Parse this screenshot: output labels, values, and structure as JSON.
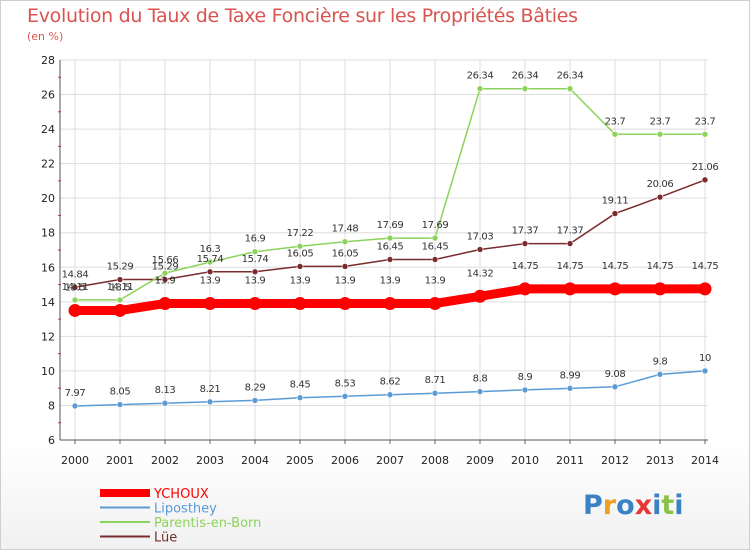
{
  "chart_data": {
    "type": "line",
    "title": "Evolution du Taux de Taxe Foncière sur les Propriétés Bâties",
    "subtitle": "(en %)",
    "xlabel": "",
    "ylabel": "",
    "x": [
      "2000",
      "2001",
      "2002",
      "2003",
      "2004",
      "2005",
      "2006",
      "2007",
      "2008",
      "2009",
      "2010",
      "2011",
      "2012",
      "2013",
      "2014"
    ],
    "ylim": [
      6,
      28
    ],
    "yticks": [
      6,
      8,
      10,
      12,
      14,
      16,
      18,
      20,
      22,
      24,
      26,
      28
    ],
    "grid": true,
    "legend_position": "bottom-left",
    "series": [
      {
        "name": "YCHOUX",
        "color": "#ff0000",
        "emphasis": true,
        "values": [
          13.5,
          13.5,
          13.9,
          13.9,
          13.9,
          13.9,
          13.9,
          13.9,
          13.9,
          14.32,
          14.75,
          14.75,
          14.75,
          14.75,
          14.75
        ],
        "labels": [
          "13.5",
          "13.5",
          "13.9",
          "13.9",
          "13.9",
          "13.9",
          "13.9",
          "13.9",
          "13.9",
          "14.32",
          "14.75",
          "14.75",
          "14.75",
          "14.75",
          "14.75"
        ]
      },
      {
        "name": "Liposthey",
        "color": "#5b9bd5",
        "values": [
          7.97,
          8.05,
          8.13,
          8.21,
          8.29,
          8.45,
          8.53,
          8.62,
          8.71,
          8.8,
          8.9,
          8.99,
          9.08,
          9.8,
          10
        ],
        "labels": [
          "7.97",
          "8.05",
          "8.13",
          "8.21",
          "8.29",
          "8.45",
          "8.53",
          "8.62",
          "8.71",
          "8.8",
          "8.9",
          "8.99",
          "9.08",
          "9.8",
          "10"
        ]
      },
      {
        "name": "Parentis-en-Born",
        "color": "#8bd35a",
        "values": [
          14.11,
          14.11,
          15.66,
          16.3,
          16.9,
          17.22,
          17.48,
          17.69,
          17.69,
          26.34,
          26.34,
          26.34,
          23.7,
          23.7,
          23.7
        ],
        "labels": [
          "14.11",
          "14.11",
          "15.66",
          "16.3",
          "16.9",
          "17.22",
          "17.48",
          "17.69",
          "17.69",
          "26.34",
          "26.34",
          "26.34",
          "23.7",
          "23.7",
          "23.7"
        ]
      },
      {
        "name": "Lüe",
        "color": "#7a2b2b",
        "values": [
          14.84,
          15.29,
          15.29,
          15.74,
          15.74,
          16.05,
          16.05,
          16.45,
          16.45,
          17.03,
          17.37,
          17.37,
          19.11,
          20.06,
          21.06
        ],
        "labels": [
          "14.84",
          "15.29",
          "15.29",
          "15.74",
          "15.74",
          "16.05",
          "16.05",
          "16.45",
          "16.45",
          "17.03",
          "17.37",
          "17.37",
          "19.11",
          "20.06",
          "21.06"
        ]
      }
    ]
  },
  "branding": {
    "logo_text": "Proxiti"
  }
}
